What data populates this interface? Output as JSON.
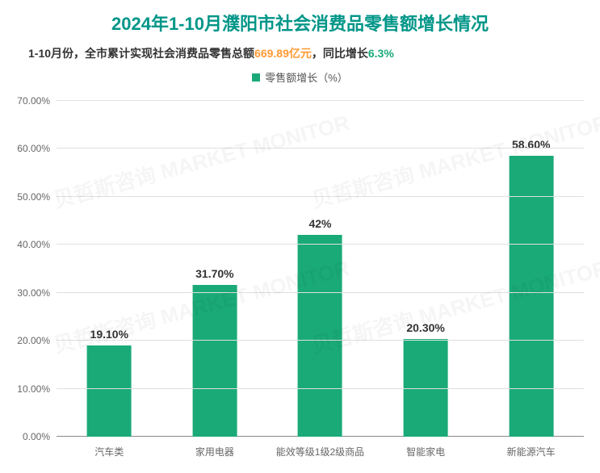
{
  "title": "2024年1-10月濮阳市社会消费品零售额增长情况",
  "subtitle": {
    "prefix": "1-10月份，全市累计实现社会消费品零售总额",
    "value1": "669.89亿元",
    "mid": "，同比增长",
    "value2": "6.3%",
    "hl1_color": "#ff9933",
    "hl2_color": "#1aaa78"
  },
  "legend": {
    "label": "零售额增长（%）",
    "color": "#1aaa78"
  },
  "chart": {
    "type": "bar",
    "categories": [
      "汽车类",
      "家用电器",
      "能效等级1级2级商品",
      "智能家电",
      "新能源汽车"
    ],
    "values": [
      19.1,
      31.7,
      42,
      20.3,
      58.6
    ],
    "value_labels": [
      "19.10%",
      "31.70%",
      "42%",
      "20.30%",
      "58.60%"
    ],
    "bar_color": "#1aaa78",
    "bar_width_pct": 42,
    "ylim": [
      0,
      70
    ],
    "ytick_step": 10,
    "yticks": [
      "0.00%",
      "10.00%",
      "20.00%",
      "30.00%",
      "40.00%",
      "50.00%",
      "60.00%",
      "70.00%"
    ],
    "grid_color": "#e0e0e0",
    "axis_color": "#888888",
    "background_color": "#ffffff",
    "title_fontsize": 22,
    "label_fontsize": 12,
    "value_label_fontsize": 14
  },
  "watermark_text": "贝哲斯咨询 MARKET MONITOR"
}
